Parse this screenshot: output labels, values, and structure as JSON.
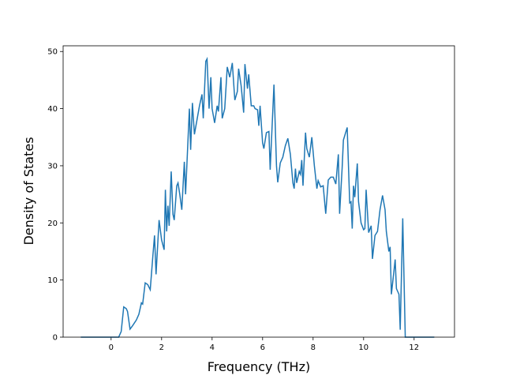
{
  "chart_data": {
    "type": "line",
    "xlabel": "Frequency (THz)",
    "ylabel": "Density of States",
    "xlim": [
      -1.9,
      13.6
    ],
    "ylim": [
      0,
      51
    ],
    "xticks": [
      0,
      2,
      4,
      6,
      8,
      10,
      12
    ],
    "yticks": [
      0,
      10,
      20,
      30,
      40,
      50
    ],
    "x": [
      -1.2,
      -0.5,
      0.0,
      0.3,
      0.4,
      0.5,
      0.6,
      0.65,
      0.75,
      0.85,
      1.0,
      1.1,
      1.2,
      1.25,
      1.35,
      1.45,
      1.55,
      1.65,
      1.72,
      1.78,
      1.9,
      2.0,
      2.1,
      2.15,
      2.2,
      2.25,
      2.3,
      2.38,
      2.45,
      2.5,
      2.6,
      2.65,
      2.72,
      2.8,
      2.9,
      2.95,
      3.1,
      3.15,
      3.22,
      3.3,
      3.4,
      3.5,
      3.6,
      3.65,
      3.75,
      3.8,
      3.88,
      3.95,
      4.0,
      4.1,
      4.2,
      4.25,
      4.35,
      4.4,
      4.5,
      4.6,
      4.7,
      4.8,
      4.9,
      5.0,
      5.05,
      5.15,
      5.25,
      5.3,
      5.4,
      5.45,
      5.55,
      5.65,
      5.7,
      5.8,
      5.85,
      5.9,
      6.0,
      6.05,
      6.15,
      6.25,
      6.3,
      6.45,
      6.55,
      6.6,
      6.7,
      6.8,
      6.9,
      7.0,
      7.1,
      7.2,
      7.25,
      7.3,
      7.35,
      7.45,
      7.5,
      7.55,
      7.6,
      7.7,
      7.75,
      7.85,
      7.95,
      8.05,
      8.15,
      8.2,
      8.3,
      8.4,
      8.5,
      8.6,
      8.7,
      8.8,
      8.9,
      9.0,
      9.05,
      9.15,
      9.2,
      9.35,
      9.45,
      9.5,
      9.55,
      9.6,
      9.65,
      9.75,
      9.8,
      9.9,
      10.0,
      10.05,
      10.1,
      10.2,
      10.3,
      10.35,
      10.45,
      10.55,
      10.65,
      10.75,
      10.85,
      10.9,
      11.0,
      11.05,
      11.1,
      11.2,
      11.25,
      11.3,
      11.4,
      11.45,
      11.55,
      11.65,
      12.0,
      12.8
    ],
    "series": [
      {
        "name": "DOS",
        "color": "#1f77b4",
        "values": [
          0,
          0,
          0,
          0,
          1,
          5.3,
          5,
          4.5,
          1.4,
          2,
          3,
          4,
          6,
          5.8,
          9.5,
          9.2,
          8.3,
          14,
          17.8,
          11,
          20.5,
          17,
          15.3,
          25.8,
          18.5,
          23,
          19.5,
          29,
          21.5,
          20.5,
          26.5,
          27,
          25,
          22.3,
          30.7,
          25,
          40,
          32.8,
          41,
          35.5,
          38,
          40.5,
          42.5,
          38.3,
          48.3,
          48.7,
          40,
          45.5,
          40,
          37.5,
          40.5,
          39.5,
          45.5,
          38.3,
          40,
          47.3,
          45.5,
          48,
          41.5,
          43,
          47,
          44,
          39.3,
          47.8,
          43.5,
          46,
          40.5,
          40.5,
          40,
          39.8,
          37,
          40.5,
          34,
          33,
          35.8,
          36,
          29.3,
          44.2,
          30,
          27.1,
          30.5,
          31.5,
          33.5,
          34.8,
          32,
          27,
          26,
          29.5,
          27,
          29,
          28.5,
          31,
          26.5,
          35.8,
          33,
          31.5,
          35,
          30,
          26,
          27.4,
          26.3,
          26.5,
          21.6,
          27.5,
          28,
          28,
          26.8,
          32,
          21.6,
          29.6,
          34.5,
          36.7,
          23.5,
          23.7,
          19,
          26.5,
          24.5,
          30.4,
          23.7,
          20,
          18.8,
          19,
          25.8,
          18.3,
          19.5,
          13.7,
          17.8,
          18.5,
          22.3,
          24.8,
          22.3,
          18.5,
          15,
          15.8,
          7.5,
          11.5,
          13.6,
          8.5,
          7.5,
          1.3,
          20.8,
          0,
          0,
          0
        ]
      }
    ]
  }
}
